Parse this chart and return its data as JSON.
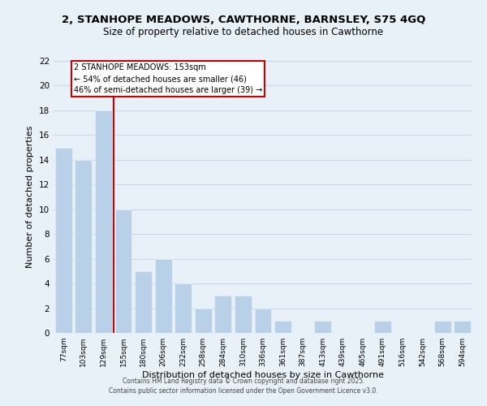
{
  "title_line1": "2, STANHOPE MEADOWS, CAWTHORNE, BARNSLEY, S75 4GQ",
  "title_line2": "Size of property relative to detached houses in Cawthorne",
  "xlabel": "Distribution of detached houses by size in Cawthorne",
  "ylabel": "Number of detached properties",
  "categories": [
    "77sqm",
    "103sqm",
    "129sqm",
    "155sqm",
    "180sqm",
    "206sqm",
    "232sqm",
    "258sqm",
    "284sqm",
    "310sqm",
    "336sqm",
    "361sqm",
    "387sqm",
    "413sqm",
    "439sqm",
    "465sqm",
    "491sqm",
    "516sqm",
    "542sqm",
    "568sqm",
    "594sqm"
  ],
  "values": [
    15,
    14,
    18,
    10,
    5,
    6,
    4,
    2,
    3,
    3,
    2,
    1,
    0,
    1,
    0,
    0,
    1,
    0,
    0,
    1,
    1
  ],
  "bar_color": "#b8d0e8",
  "vline_color": "#cc0000",
  "vline_index": 2.5,
  "ylim": [
    0,
    22
  ],
  "yticks": [
    0,
    2,
    4,
    6,
    8,
    10,
    12,
    14,
    16,
    18,
    20,
    22
  ],
  "annotation_title": "2 STANHOPE MEADOWS: 153sqm",
  "annotation_line2": "← 54% of detached houses are smaller (46)",
  "annotation_line3": "46% of semi-detached houses are larger (39) →",
  "annotation_box_facecolor": "#ffffff",
  "annotation_box_edgecolor": "#cc0000",
  "grid_color": "#c8d8e8",
  "bg_color": "#e8f0f8",
  "footnote1": "Contains HM Land Registry data © Crown copyright and database right 2025.",
  "footnote2": "Contains public sector information licensed under the Open Government Licence v3.0."
}
